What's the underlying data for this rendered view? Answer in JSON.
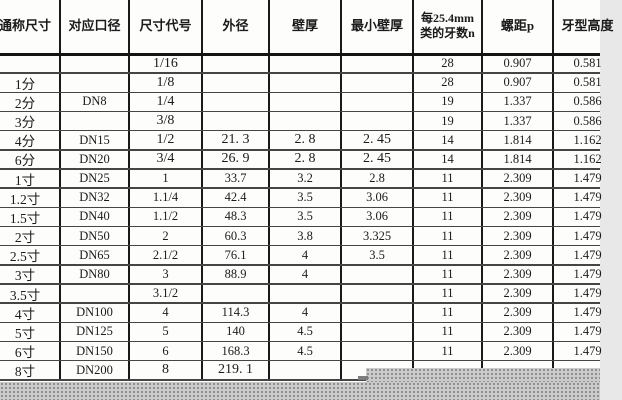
{
  "table": {
    "title": "pipe-thread-dimension-table",
    "columns": [
      {
        "label": "通称尺寸"
      },
      {
        "label": "对应口径"
      },
      {
        "label": "尺寸代号"
      },
      {
        "label": "外径"
      },
      {
        "label": "壁厚"
      },
      {
        "label": "最小壁厚"
      },
      {
        "label": "每25.4mm\n类的牙数n"
      },
      {
        "label": "螺距p"
      },
      {
        "label": "牙型高度"
      }
    ],
    "rows": [
      [
        "",
        "",
        "1/16",
        "",
        "",
        "",
        "28",
        "0.907",
        "0.581"
      ],
      [
        "1分",
        "",
        "1/8",
        "",
        "",
        "",
        "28",
        "0.907",
        "0.581"
      ],
      [
        "2分",
        "DN8",
        "1/4",
        "",
        "",
        "",
        "19",
        "1.337",
        "0.586"
      ],
      [
        "3分",
        "",
        "3/8",
        "",
        "",
        "",
        "19",
        "1.337",
        "0.586"
      ],
      [
        "4分",
        "DN15",
        "1/2",
        "21. 3",
        "2. 8",
        "2. 45",
        "14",
        "1.814",
        "1.162"
      ],
      [
        "6分",
        "DN20",
        "3/4",
        "26. 9",
        "2. 8",
        "2. 45",
        "14",
        "1.814",
        "1.162"
      ],
      [
        "1寸",
        "DN25",
        "1",
        "33.7",
        "3.2",
        "2.8",
        "11",
        "2.309",
        "1.479"
      ],
      [
        "1.2寸",
        "DN32",
        "1.1/4",
        "42.4",
        "3.5",
        "3.06",
        "11",
        "2.309",
        "1.479"
      ],
      [
        "1.5寸",
        "DN40",
        "1.1/2",
        "48.3",
        "3.5",
        "3.06",
        "11",
        "2.309",
        "1.479"
      ],
      [
        "2寸",
        "DN50",
        "2",
        "60.3",
        "3.8",
        "3.325",
        "11",
        "2.309",
        "1.479"
      ],
      [
        "2.5寸",
        "DN65",
        "2.1/2",
        "76.1",
        "4",
        "3.5",
        "11",
        "2.309",
        "1.479"
      ],
      [
        "3寸",
        "DN80",
        "3",
        "88.9",
        "4",
        "",
        "11",
        "2.309",
        "1.479"
      ],
      [
        "3.5寸",
        "",
        "3.1/2",
        "",
        "",
        "",
        "11",
        "2.309",
        "1.479"
      ],
      [
        "4寸",
        "DN100",
        "4",
        "114.3",
        "4",
        "",
        "11",
        "2.309",
        "1.479"
      ],
      [
        "5寸",
        "DN125",
        "5",
        "140",
        "4.5",
        "",
        "11",
        "2.309",
        "1.479"
      ],
      [
        "6寸",
        "DN150",
        "6",
        "168.3",
        "4.5",
        "",
        "11",
        "2.309",
        "1.479"
      ],
      [
        "8寸",
        "DN200",
        "8",
        "219. 1",
        "",
        "",
        "",
        "",
        ""
      ]
    ]
  },
  "colors": {
    "border": "#191919",
    "row_line": "#454545",
    "text": "#1b1b1b",
    "background": "#fdfdfc",
    "texture_base": "#cbcbcb",
    "texture_dot": "#7d7d7d"
  }
}
